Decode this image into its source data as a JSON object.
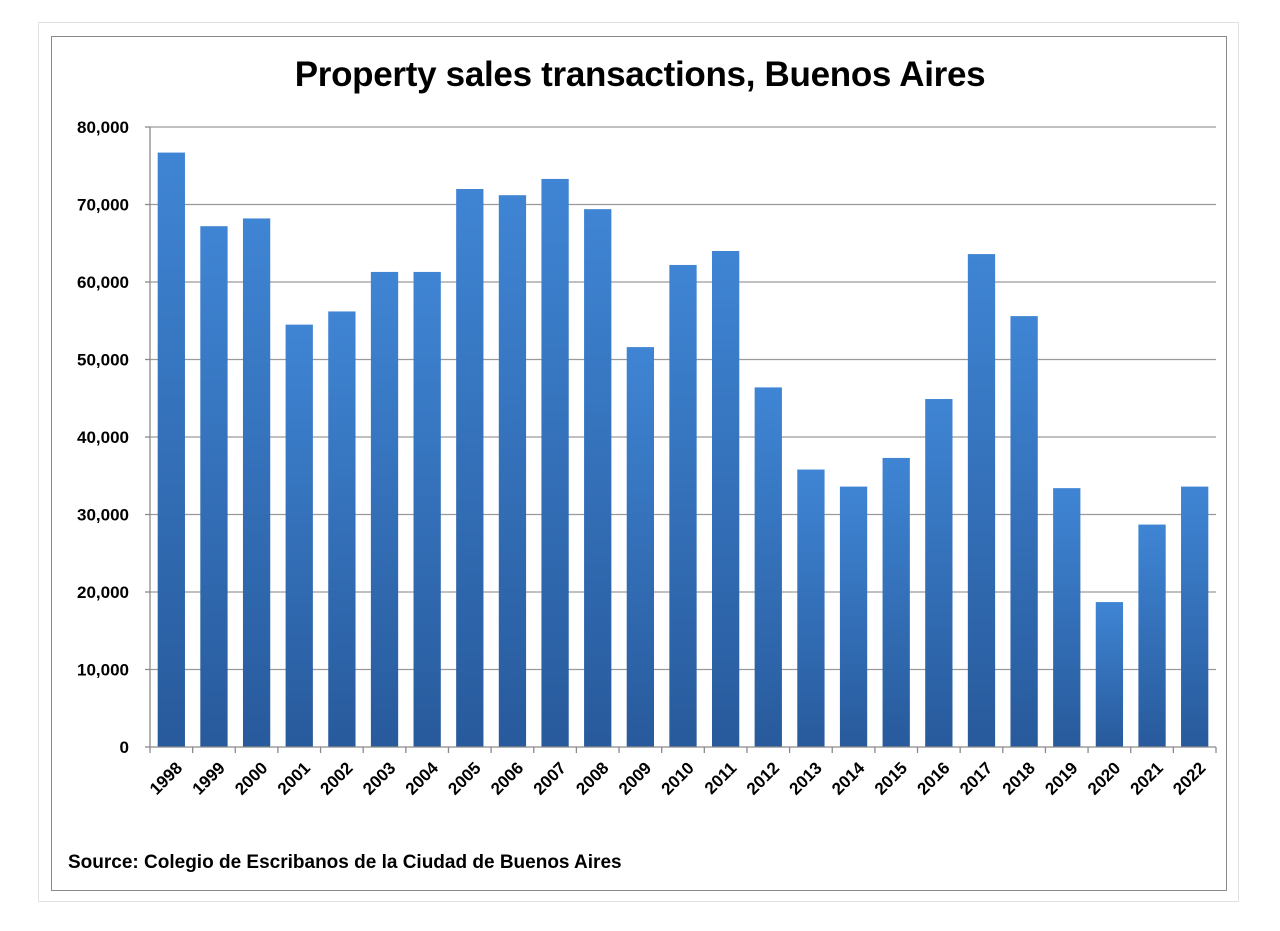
{
  "chart_data": {
    "type": "bar",
    "title": "Property sales transactions, Buenos Aires",
    "source": "Source: Colegio de Escribanos de la Ciudad de Buenos Aires",
    "xlabel": "",
    "ylabel": "",
    "ylim": [
      0,
      80000
    ],
    "y_ticks": [
      0,
      10000,
      20000,
      30000,
      40000,
      50000,
      60000,
      70000,
      80000
    ],
    "y_tick_labels": [
      "0",
      "10,000",
      "20,000",
      "30,000",
      "40,000",
      "50,000",
      "60,000",
      "70,000",
      "80,000"
    ],
    "grid": true,
    "legend": "none",
    "bar_color_top": "#3f85d4",
    "bar_color_bottom": "#285a9c",
    "categories": [
      "1998",
      "1999",
      "2000",
      "2001",
      "2002",
      "2003",
      "2004",
      "2005",
      "2006",
      "2007",
      "2008",
      "2009",
      "2010",
      "2011",
      "2012",
      "2013",
      "2014",
      "2015",
      "2016",
      "2017",
      "2018",
      "2019",
      "2020",
      "2021",
      "2022"
    ],
    "values": [
      76700,
      67200,
      68200,
      54500,
      56200,
      61300,
      61300,
      72000,
      71200,
      73300,
      69400,
      51600,
      62200,
      64000,
      46400,
      35800,
      33600,
      37300,
      44900,
      63600,
      55600,
      33400,
      18700,
      28700,
      33600
    ]
  }
}
